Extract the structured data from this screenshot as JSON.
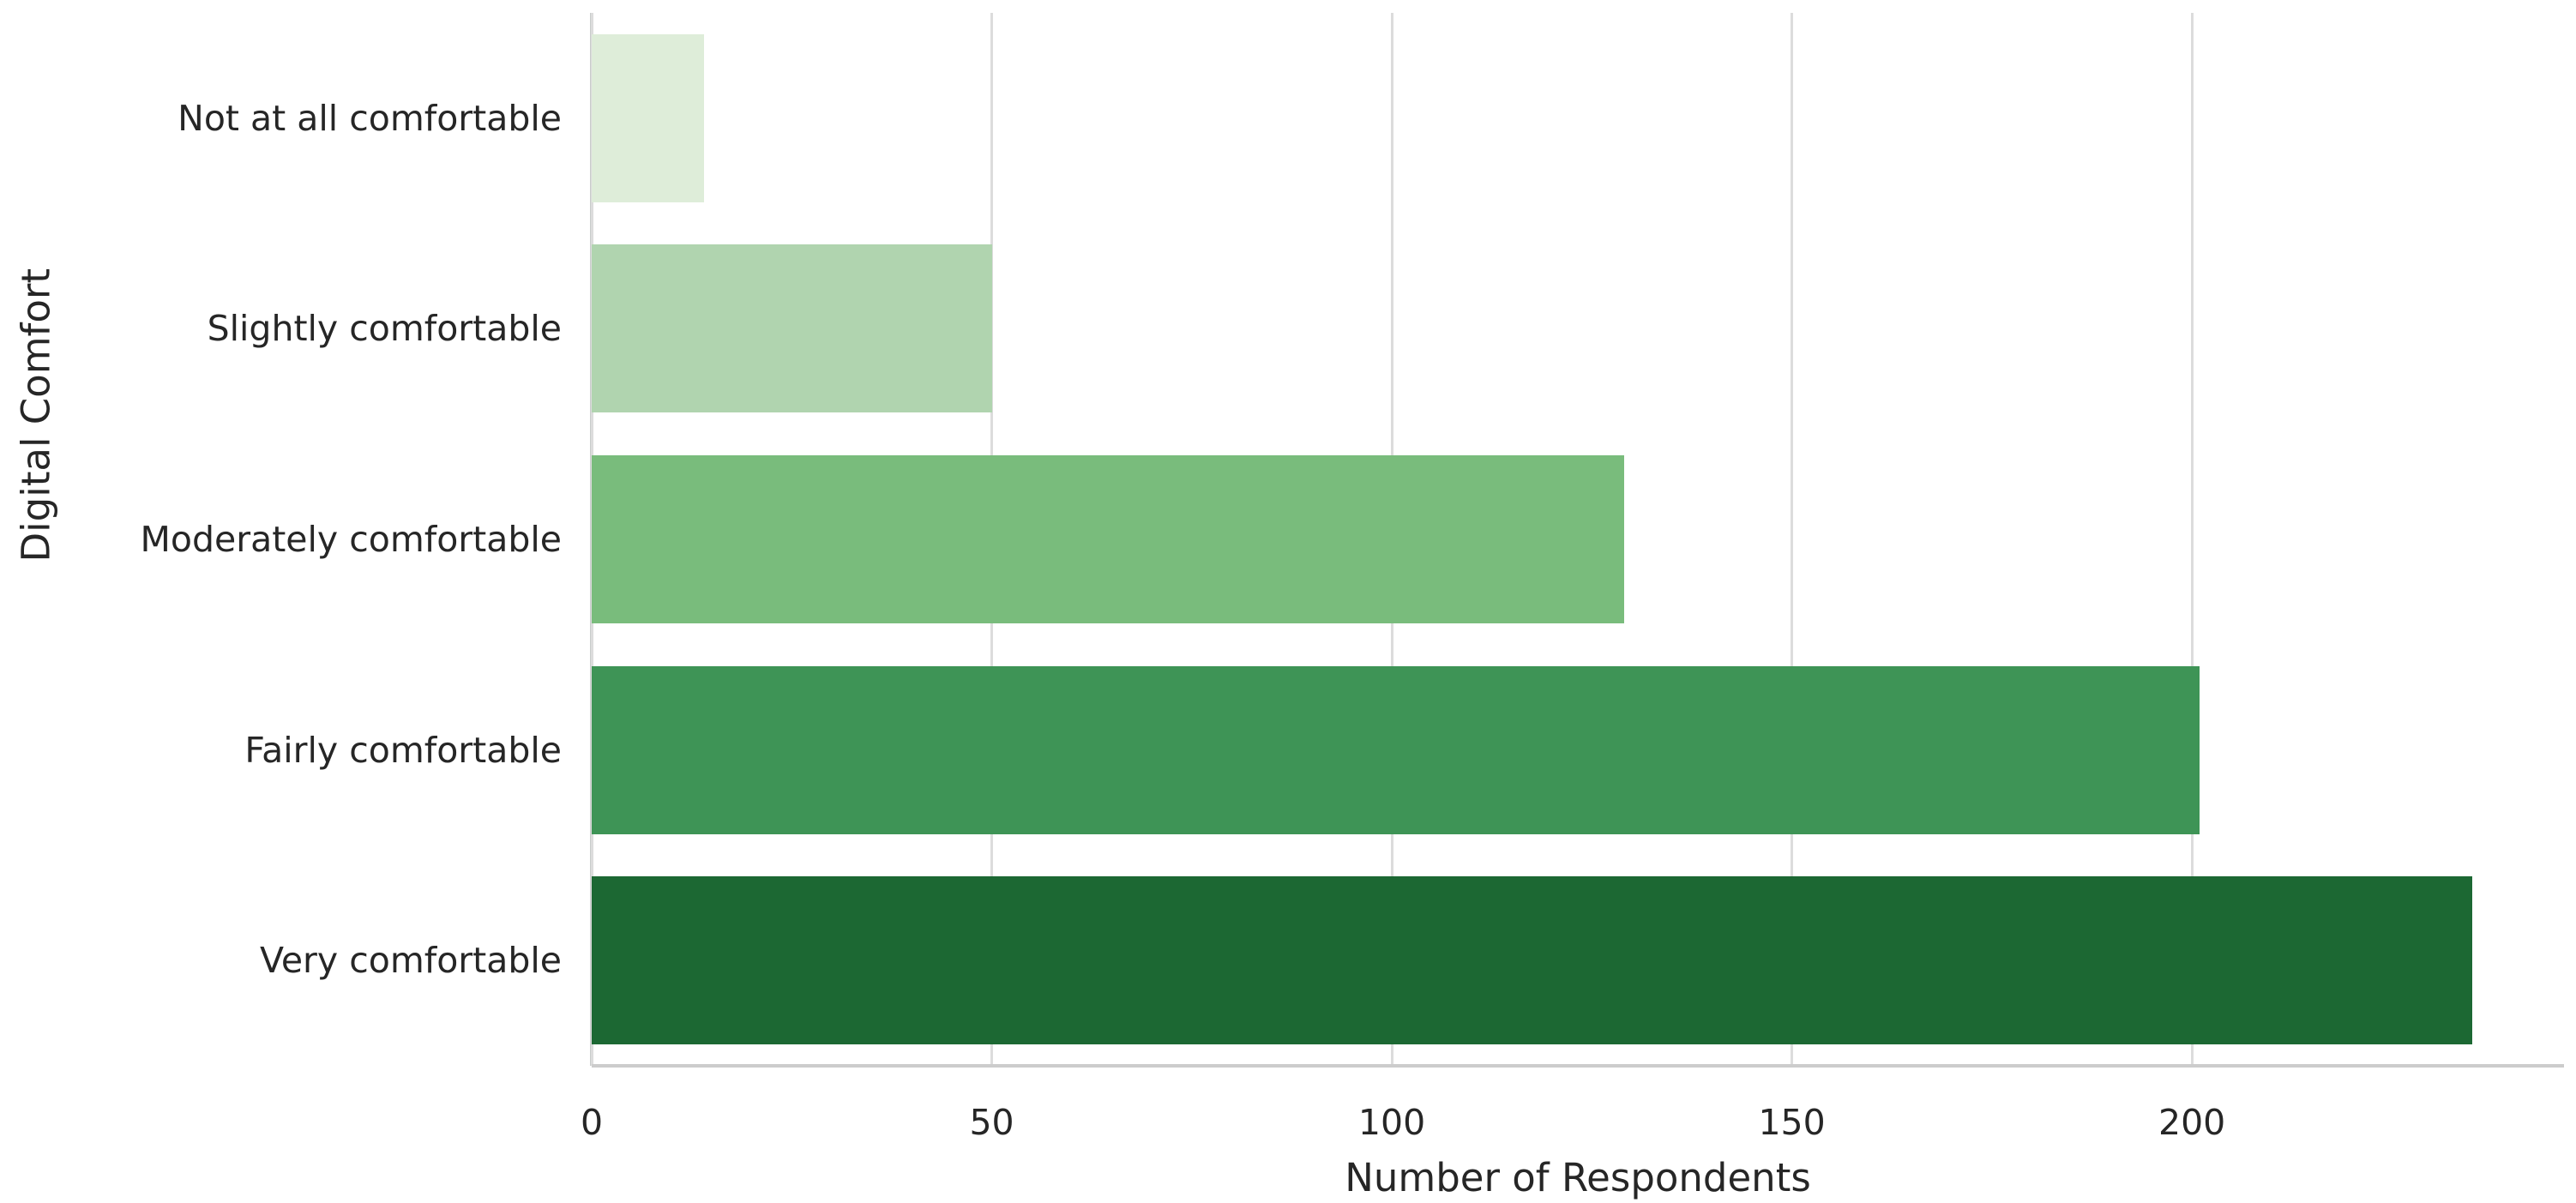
{
  "chart_data": {
    "type": "bar",
    "orientation": "horizontal",
    "categories": [
      "Not at all comfortable",
      "Slightly comfortable",
      "Moderately comfortable",
      "Fairly comfortable",
      "Very comfortable"
    ],
    "values": [
      14,
      50,
      129,
      201,
      235
    ],
    "bar_colors": [
      "#deedd9",
      "#b0d4af",
      "#79bc7c",
      "#3e9456",
      "#1c6833"
    ],
    "xlabel": "Number of Respondents",
    "ylabel": "Digital Comfort",
    "xticks": [
      0,
      50,
      100,
      150,
      200
    ],
    "xlim": [
      0,
      246.5
    ],
    "grid": true,
    "legend": false,
    "grid_color": "#dcdcdc",
    "axis_line_color": "#c9cccb",
    "text_color": "#262626",
    "background_color": "#ffffff"
  }
}
